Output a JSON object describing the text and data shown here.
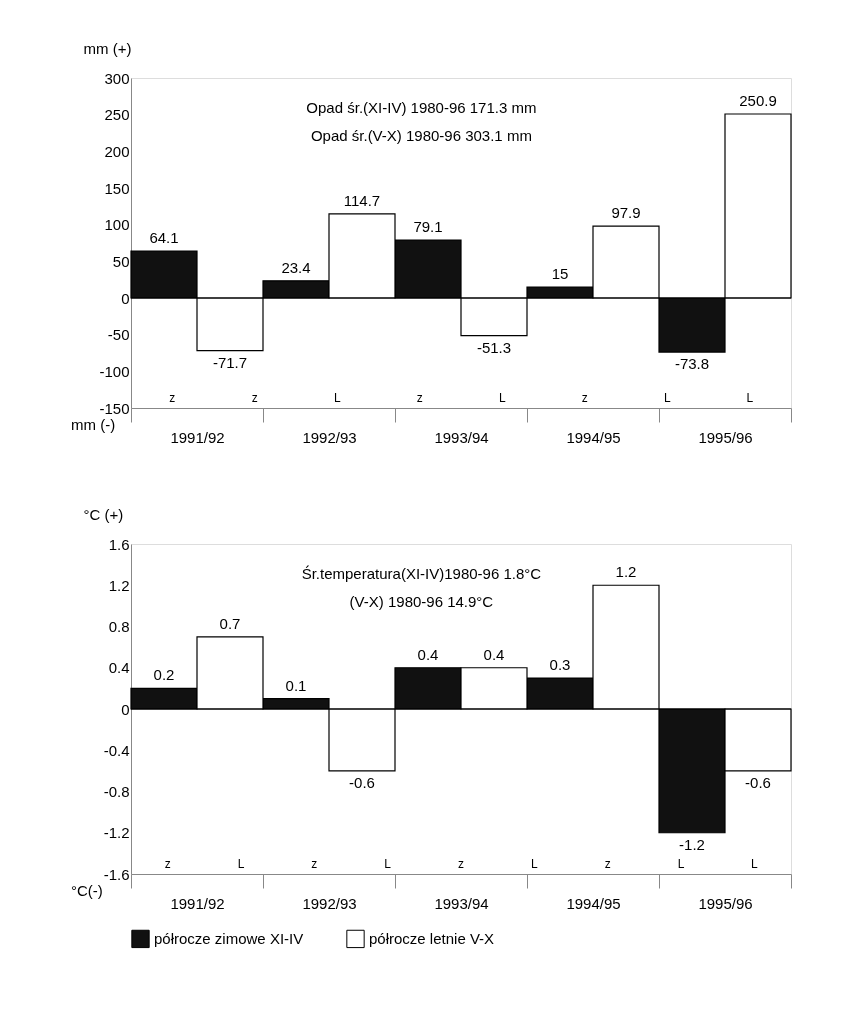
{
  "chart_data": [
    {
      "type": "bar",
      "ylabel": "mm (+)",
      "categories": [
        "1991/92",
        "1992/93",
        "1993/94",
        "1994/95",
        "1995/96"
      ],
      "series": [
        {
          "color": "#111111",
          "values": [
            64.1,
            23.4,
            79.1,
            15,
            -73.8
          ]
        },
        {
          "color": "#ffffff",
          "values": [
            -71.7,
            114.7,
            -51.3,
            97.9,
            250.9
          ]
        }
      ],
      "ylim": [
        -150,
        300
      ],
      "yticks": [
        -150,
        -100,
        -50,
        0,
        50,
        100,
        150,
        200,
        250,
        300
      ],
      "data_labels": true,
      "legend": false,
      "annotations": [
        "Opad śr.(XI-IV) 1980-96 171.3 mm",
        "Opad śr.(V-X) 1980-96 303.1 mm",
        "mm (-)",
        "z",
        "z",
        "L",
        "z",
        "L",
        "z",
        "L",
        "L"
      ]
    },
    {
      "type": "bar",
      "ylabel": "°C (+)",
      "categories": [
        "1991/92",
        "1992/93",
        "1993/94",
        "1994/95",
        "1995/96"
      ],
      "series": [
        {
          "name": "półrocze zimowe XI-IV",
          "color": "#111111",
          "values": [
            0.2,
            0.1,
            0.4,
            0.3,
            -1.2
          ]
        },
        {
          "name": "półrocze letnie V-X",
          "color": "#ffffff",
          "values": [
            0.7,
            -0.6,
            0.4,
            1.2,
            -0.6
          ]
        }
      ],
      "ylim": [
        -1.6,
        1.6
      ],
      "yticks": [
        -1.6,
        -1.2,
        -0.8,
        -0.4,
        0,
        0.4,
        0.8,
        1.2,
        1.6
      ],
      "data_labels": true,
      "legend": "bottom",
      "annotations": [
        "Śr.temperatura(XI-IV)1980-96 1.8°C",
        "(V-X) 1980-96 14.9°C",
        "°C(-)",
        "z",
        "L",
        "z",
        "L",
        "z",
        "L",
        "z",
        "L",
        "L"
      ]
    }
  ]
}
